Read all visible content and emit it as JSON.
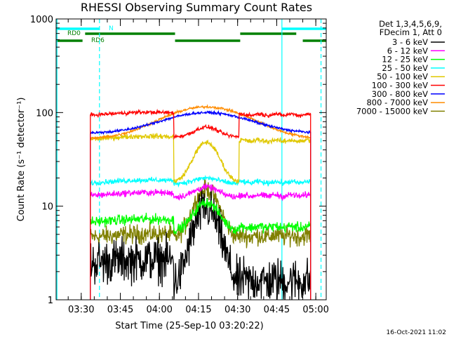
{
  "chart_data": {
    "type": "line",
    "title": "RHESSI Observing Summary Count Rates",
    "xlabel": "Start Time (25-Sep-10 03:20:22)",
    "ylabel": "Count Rate (s⁻¹ detector⁻¹)",
    "yscale": "log",
    "ylim": [
      1,
      1000
    ],
    "xlim_minutes": [
      200.37,
      304
    ],
    "x_ticks": [
      "03:30",
      "03:45",
      "04:00",
      "04:15",
      "04:30",
      "04:45",
      "05:00"
    ],
    "y_ticks": [
      "1",
      "10",
      "100",
      "1000"
    ],
    "legend_header": [
      "Det 1,3,4,5,6,9,",
      "FDecim 1, Att 0"
    ],
    "legend_position": "right",
    "timestamp": "16-Oct-2021 11:02",
    "flags": [
      {
        "label": "N",
        "color": "#00ffff",
        "segments": [
          [
            200.4,
            217
          ],
          [
            287,
            304
          ]
        ]
      },
      {
        "label": "RD0",
        "color": "#008000",
        "segments": [
          [
            211.5,
            246
          ],
          [
            271,
            292.5
          ]
        ]
      },
      {
        "label": "RD6",
        "color": "#008000",
        "segments": [
          [
            200.4,
            210.5
          ],
          [
            246,
            271
          ],
          [
            295,
            304
          ]
        ]
      }
    ],
    "vlines_solid": [
      200.7,
      287
    ],
    "vlines_dashed": [
      217,
      302
    ],
    "data_gaps": [
      [
        200.37,
        213.5
      ],
      [
        298,
        304
      ]
    ],
    "series": [
      {
        "name": "3 - 6 keV",
        "color": "#000000",
        "baseline": 2.4,
        "peak": 9.5,
        "night1": 1.4,
        "night2": 1.6,
        "noise": 0.35
      },
      {
        "name": "6 - 12 keV",
        "color": "#ff00ff",
        "baseline": 12.5,
        "peak": 16,
        "night1": 12.5,
        "night2": 13,
        "noise": 0.05
      },
      {
        "name": "12 - 25 keV",
        "color": "#00ff00",
        "baseline": 6.5,
        "peak": 11,
        "night1": 5.5,
        "night2": 6,
        "noise": 0.08
      },
      {
        "name": "25 - 50 keV",
        "color": "#00ffff",
        "baseline": 17,
        "peak": 20,
        "night1": 17.5,
        "night2": 18,
        "noise": 0.04
      },
      {
        "name": "50 - 100 keV",
        "color": "#e0c800",
        "baseline": 50,
        "peak": 48,
        "night1": 18,
        "night2": 50,
        "noise": 0.04
      },
      {
        "name": "100 - 300 keV",
        "color": "#ff0000",
        "baseline": 90,
        "peak": 70,
        "night1": 55,
        "night2": 95,
        "noise": 0.03
      },
      {
        "name": "300 - 800 keV",
        "color": "#0000ff",
        "baseline": 60,
        "peak": 100,
        "night1": 60,
        "night2": 60,
        "noise": 0.02
      },
      {
        "name": "800 - 7000 keV",
        "color": "#ff8c00",
        "baseline": 52,
        "peak": 115,
        "night1": 52,
        "night2": 52,
        "noise": 0.02
      },
      {
        "name": "7000 - 15000 keV",
        "color": "#808000",
        "baseline": 4.5,
        "peak": 15,
        "night1": 4.5,
        "night2": 4.8,
        "noise": 0.15
      }
    ]
  }
}
